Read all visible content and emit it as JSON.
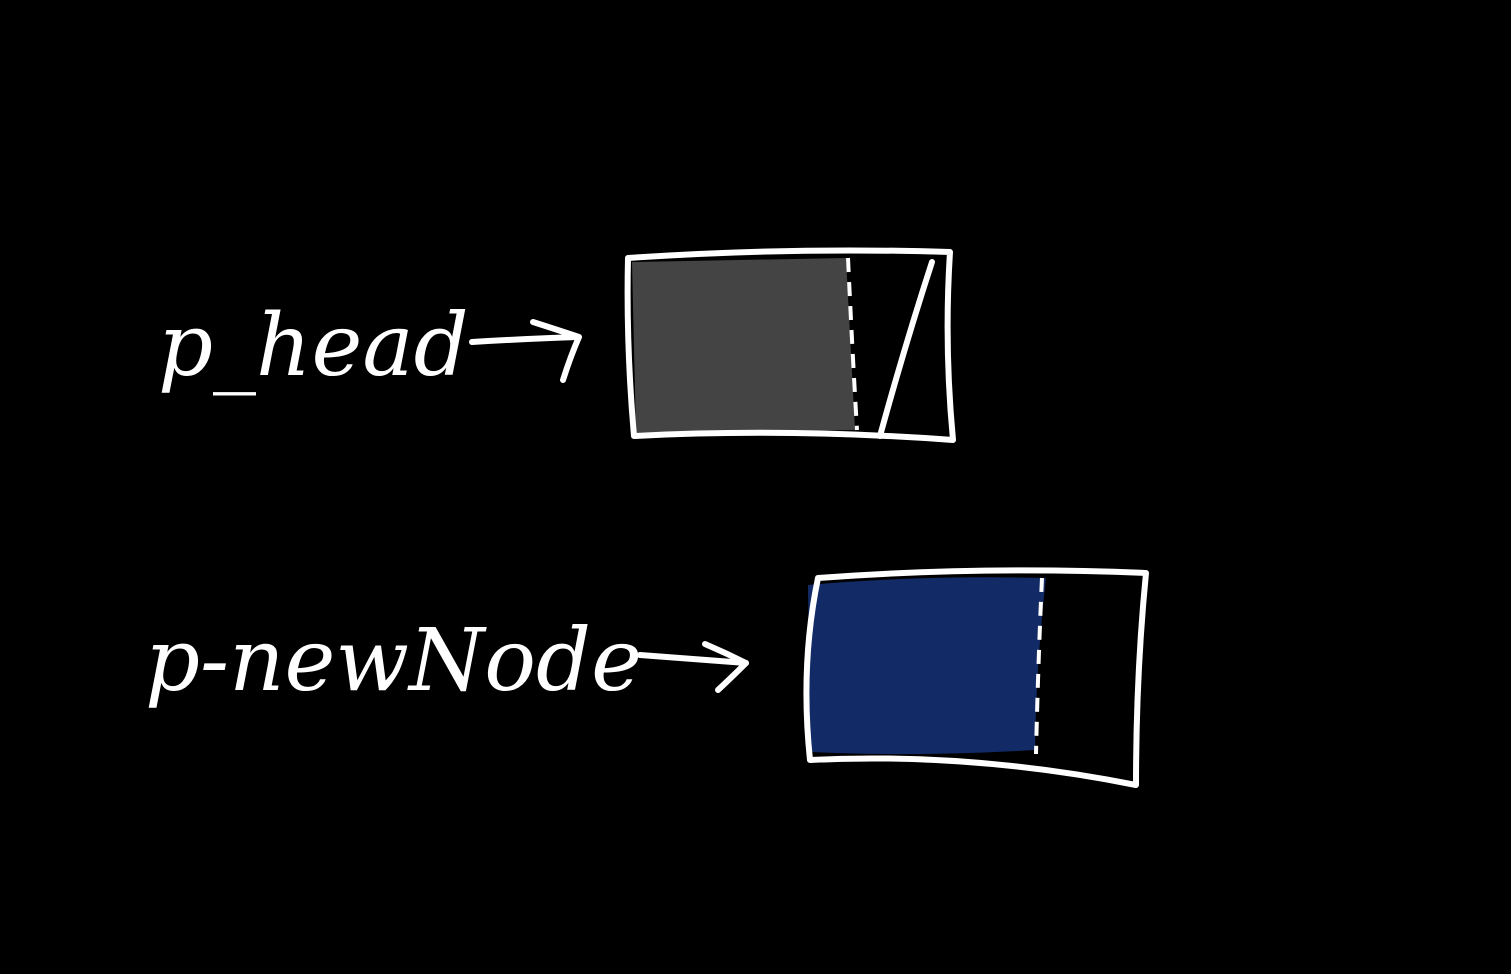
{
  "diagram": {
    "background_color": "#000000",
    "stroke_color": "#ffffff",
    "nodes": [
      {
        "pointer_label": "p_head",
        "data_fill": "#444444",
        "next_is_null": true
      },
      {
        "pointer_label": "p-newNode",
        "data_fill": "#122b66",
        "next_is_null": false
      }
    ]
  }
}
